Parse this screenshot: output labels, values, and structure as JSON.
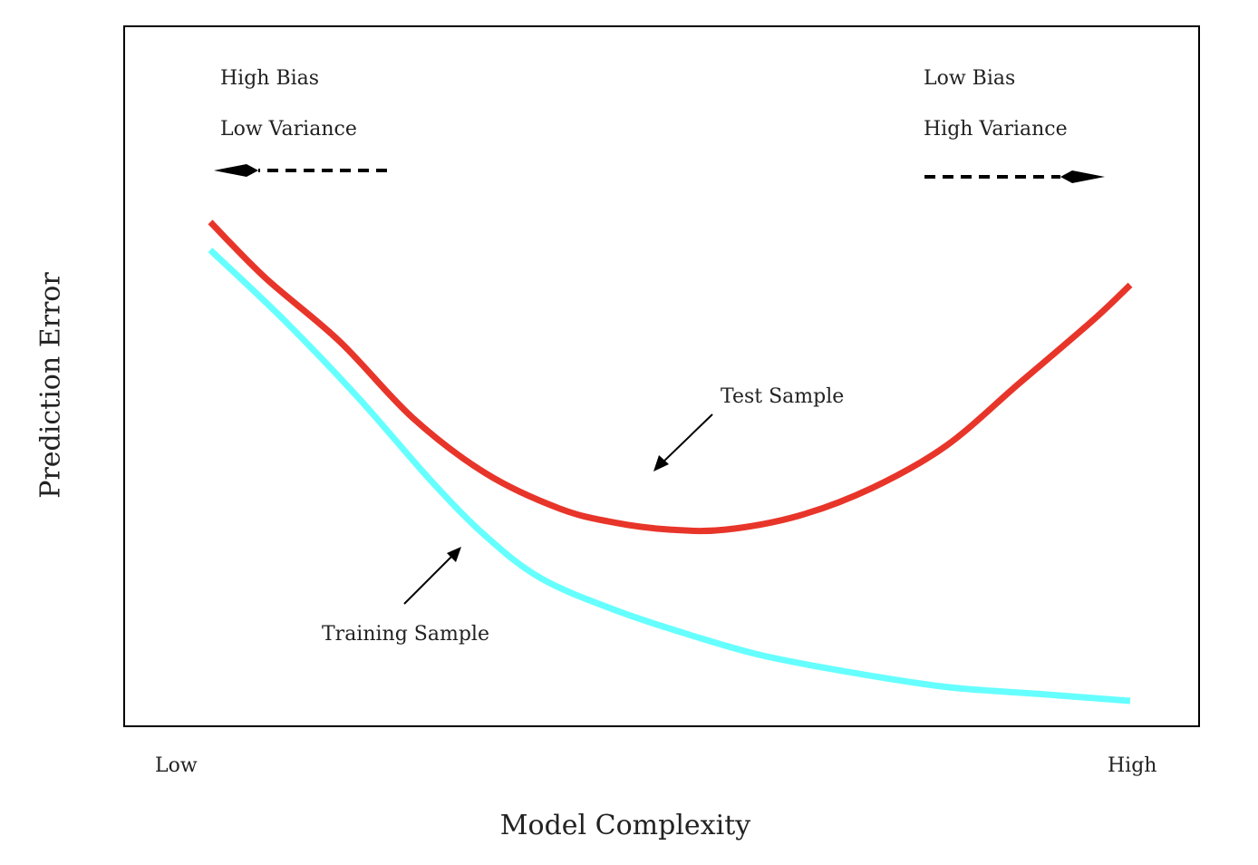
{
  "chart_data": {
    "type": "line",
    "xlabel": "Model Complexity",
    "ylabel": "Prediction Error",
    "x_ticks": [
      "Low",
      "High"
    ],
    "xlim": [
      0,
      1
    ],
    "ylim": [
      0,
      1
    ],
    "grid": false,
    "legend": "none",
    "series": [
      {
        "name": "Test Sample",
        "color": "#e8352a",
        "x": [
          0.0,
          0.06,
          0.14,
          0.22,
          0.3,
          0.38,
          0.44,
          0.5,
          0.56,
          0.64,
          0.72,
          0.8,
          0.88,
          0.96,
          1.0
        ],
        "values": [
          0.72,
          0.64,
          0.55,
          0.44,
          0.36,
          0.31,
          0.29,
          0.28,
          0.28,
          0.3,
          0.34,
          0.4,
          0.49,
          0.58,
          0.63
        ]
      },
      {
        "name": "Training Sample",
        "color": "#66ffff",
        "x": [
          0.0,
          0.08,
          0.16,
          0.24,
          0.3,
          0.36,
          0.44,
          0.52,
          0.6,
          0.7,
          0.8,
          0.9,
          1.0
        ],
        "values": [
          0.68,
          0.58,
          0.47,
          0.35,
          0.27,
          0.21,
          0.165,
          0.13,
          0.1,
          0.075,
          0.055,
          0.045,
          0.035
        ]
      }
    ],
    "annotations": {
      "left_top": "High Bias",
      "left_bottom": "Low Variance",
      "right_top": "Low Bias",
      "right_bottom": "High Variance",
      "test_label": "Test Sample",
      "train_label": "Training Sample"
    }
  }
}
